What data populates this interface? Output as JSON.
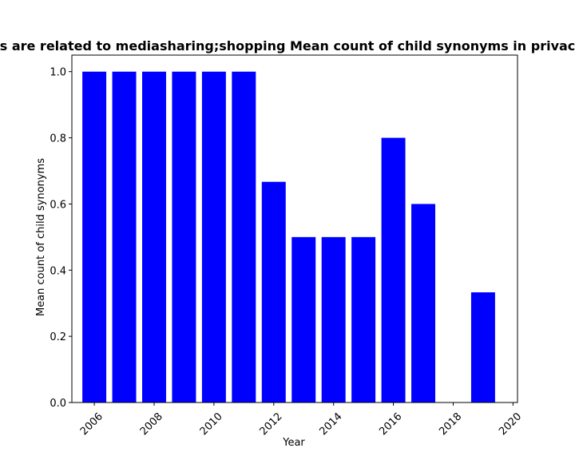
{
  "chart_data": {
    "type": "bar",
    "title": "s are related to mediasharing;shopping Mean count of child synonyms in privac",
    "xlabel": "Year",
    "ylabel": "Mean count of child synonyms",
    "bar_color": "#0000ff",
    "x": [
      2006,
      2007,
      2008,
      2009,
      2010,
      2011,
      2012,
      2013,
      2014,
      2015,
      2016,
      2017,
      2019
    ],
    "values": [
      1.0,
      1.0,
      1.0,
      1.0,
      1.0,
      1.0,
      0.667,
      0.5,
      0.5,
      0.5,
      0.8,
      0.6,
      0.333
    ],
    "xlim": [
      2005.25,
      2020.15
    ],
    "ylim": [
      0,
      1.05
    ],
    "x_ticks": [
      "2006",
      "2008",
      "2010",
      "2012",
      "2014",
      "2016",
      "2018",
      "2020"
    ],
    "y_ticks": [
      "0.0",
      "0.2",
      "0.4",
      "0.6",
      "0.8",
      "1.0"
    ],
    "grid": false,
    "legend": "none"
  }
}
